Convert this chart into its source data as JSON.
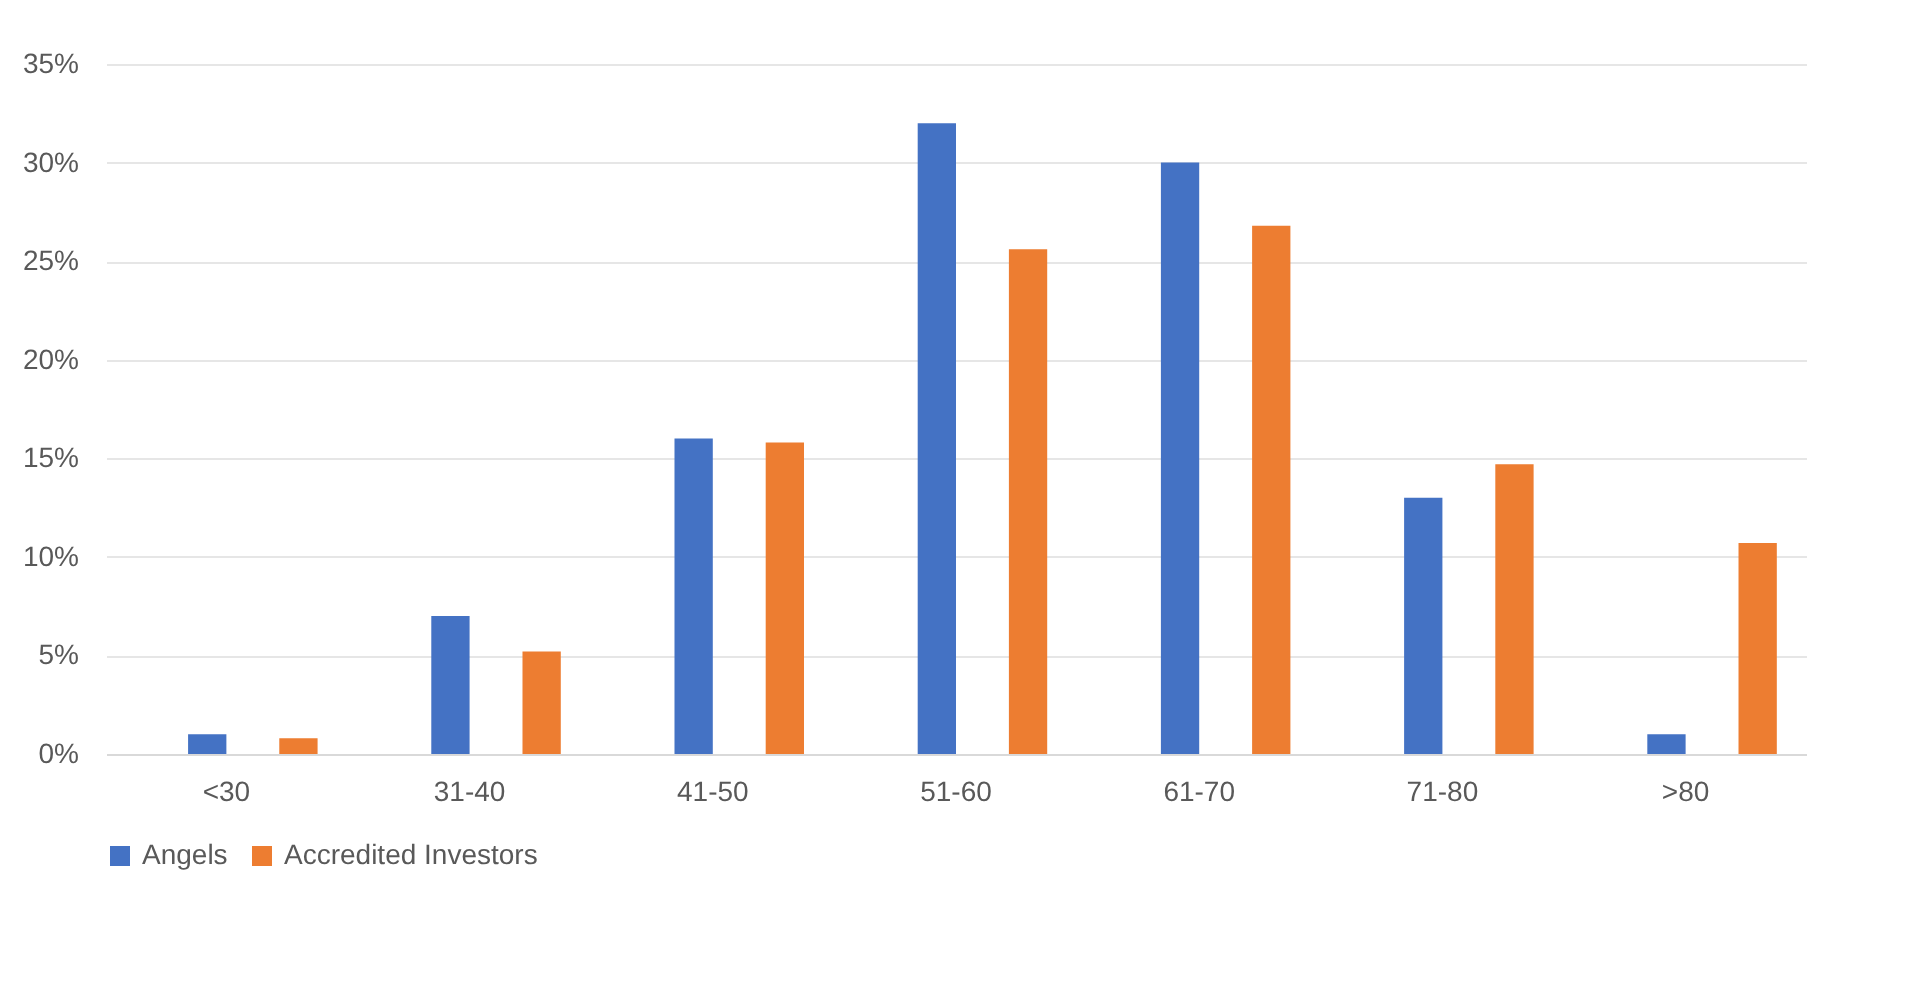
{
  "chart_data": {
    "type": "bar",
    "categories": [
      "<30",
      "31-40",
      "41-50",
      "51-60",
      "61-70",
      "71-80",
      ">80"
    ],
    "series": [
      {
        "name": "Angels",
        "color": "#4472c4",
        "values": [
          1,
          7,
          16,
          32,
          30,
          13,
          1
        ]
      },
      {
        "name": "Accredited Investors",
        "color": "#ed7d31",
        "values": [
          0.8,
          5.2,
          15.8,
          25.6,
          26.8,
          14.7,
          10.7
        ]
      }
    ],
    "ylim": [
      0,
      35
    ],
    "yticks": [
      {
        "value": 0,
        "label": "0%"
      },
      {
        "value": 5,
        "label": "5%"
      },
      {
        "value": 10,
        "label": "10%"
      },
      {
        "value": 15,
        "label": "15%"
      },
      {
        "value": 20,
        "label": "20%"
      },
      {
        "value": 25,
        "label": "25%"
      },
      {
        "value": 30,
        "label": "30%"
      },
      {
        "value": 35,
        "label": "35%"
      }
    ],
    "grid": "y",
    "legend": "bottom"
  }
}
